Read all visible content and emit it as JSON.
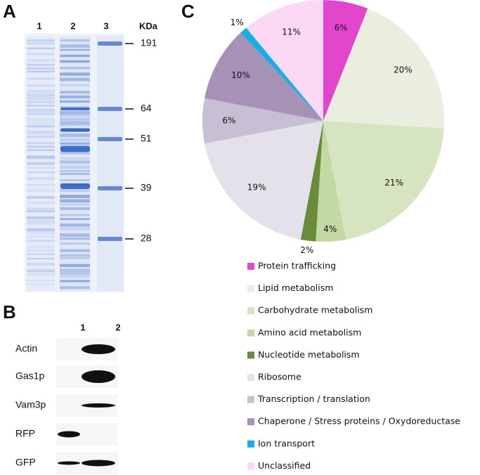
{
  "panel_a": {
    "label": "A",
    "lanes": [
      "1",
      "2",
      "3"
    ],
    "unit": "KDa",
    "markers": [
      191,
      64,
      51,
      39,
      28
    ]
  },
  "panel_b": {
    "label": "B",
    "lanes": [
      "1",
      "2"
    ],
    "rows": [
      "Actin",
      "Gas1p",
      "Vam3p",
      "RFP",
      "GFP"
    ]
  },
  "chart_data": {
    "type": "pie",
    "label": "C",
    "categories": [
      "Protein trafficking",
      "Lipid metabolism",
      "Carbohydrate metabolism",
      "Amino acid metabolism",
      "Nucleotide metabolism",
      "Ribosome",
      "Transcription / translation",
      "Chaperone / Stress proteins / Oxydoreductase",
      "Ion transport",
      "Unclassified"
    ],
    "values": [
      6,
      20,
      21,
      4,
      2,
      19,
      6,
      10,
      1,
      11
    ],
    "value_labels": [
      "6%",
      "20%",
      "21%",
      "4%",
      "2%",
      "19%",
      "6%",
      "10%",
      "1%",
      "11%"
    ],
    "colors": [
      "#e246cc",
      "#eaeedf",
      "#d6e4bf",
      "#c3d9a3",
      "#6a8b3b",
      "#e5e1ea",
      "#c9bfd5",
      "#a792b7",
      "#19afe6",
      "#fbd8f4"
    ]
  }
}
